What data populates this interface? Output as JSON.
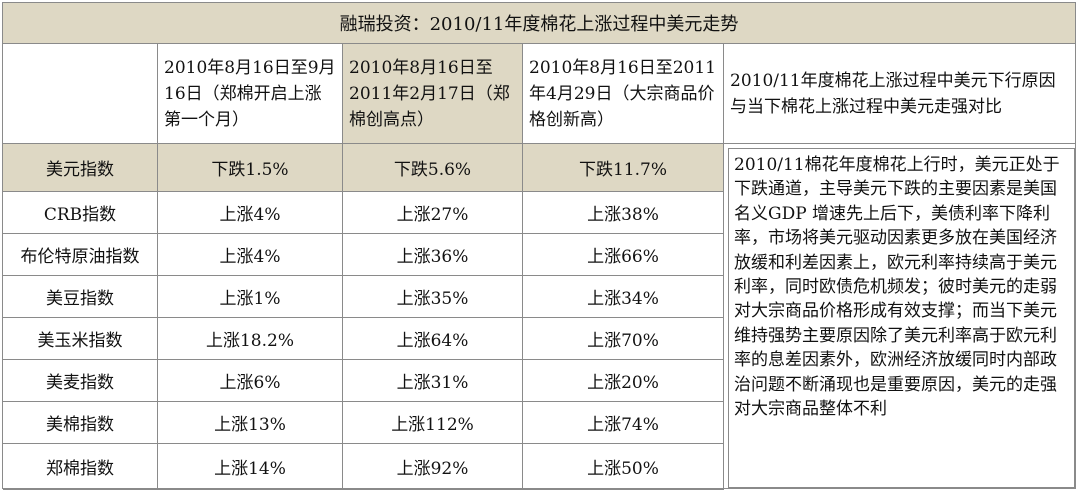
{
  "title": "融瑞投资：2010/11年度棉花上涨过程中美元走势",
  "headers": [
    "",
    "2010年8月16日至9月16日（郑棉开启上涨第一个月）",
    "2010年8月16日至2011年2月17日（郑棉创高点）",
    "2010年8月16日至2011年4月29日（大宗商品价格创新高）",
    "2010/11年度棉花上涨过程中美元下行原因与当下棉花上涨过程中美元走强对比"
  ],
  "rows": [
    {
      "name": "美元指数",
      "p1": "下跌1.5%",
      "p2": "下跌5.6%",
      "p3": "下跌11.7%"
    },
    {
      "name": "CRB指数",
      "p1": "上涨4%",
      "p2": "上涨27%",
      "p3": "上涨38%"
    },
    {
      "name": "布伦特原油指数",
      "p1": "上涨4%",
      "p2": "上涨36%",
      "p3": "上涨66%"
    },
    {
      "name": "美豆指数",
      "p1": "上涨1%",
      "p2": "上涨35%",
      "p3": "上涨34%"
    },
    {
      "name": "美玉米指数",
      "p1": "上涨18.2%",
      "p2": "上涨64%",
      "p3": "上涨70%"
    },
    {
      "name": "美麦指数",
      "p1": "上涨6%",
      "p2": "上涨31%",
      "p3": "上涨20%"
    },
    {
      "name": "美棉指数",
      "p1": "上涨13%",
      "p2": "上涨112%",
      "p3": "上涨74%"
    },
    {
      "name": "郑棉指数",
      "p1": "上涨14%",
      "p2": "上涨92%",
      "p3": "上涨50%"
    }
  ],
  "note": "2010/11棉花年度棉花上行时，美元正处于下跌通道，主导美元下跌的主要因素是美国名义GDP 增速先上后下，美债利率下降利率，市场将美元驱动因素更多放在美国经济放缓和利差因素上，欧元利率持续高于美元利率，同时欧债危机频发；彼时美元的走弱对大宗商品价格形成有效支撑；而当下美元维持强势主要原因除了美元利率高于欧元利率的息差因素外，欧洲经济放缓同时内部政治问题不断涌现也是重要原因，美元的走强对大宗商品整体不利",
  "colors": {
    "header_shade": "#ded8c4",
    "border": "#8a8a8a"
  }
}
